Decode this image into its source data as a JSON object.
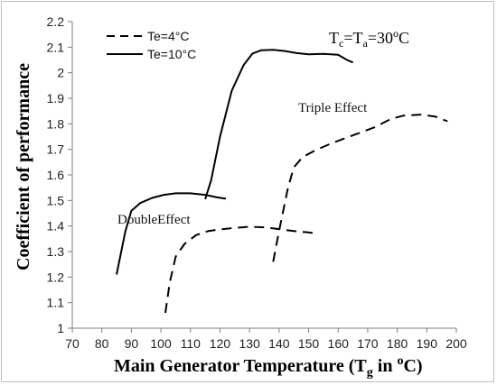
{
  "chart_data": {
    "type": "line",
    "xlabel_main": "Main Generator Temperature (T",
    "xlabel_sub": "g",
    "xlabel_mid": " in ",
    "xlabel_sup": "o",
    "xlabel_end": "C)",
    "ylabel": "Coefficient of performance",
    "xlim": [
      70,
      200
    ],
    "ylim": [
      1,
      2.2
    ],
    "xticks": [
      70,
      80,
      90,
      100,
      110,
      120,
      130,
      140,
      150,
      160,
      170,
      180,
      190,
      200
    ],
    "yticks": [
      "1",
      "1.1",
      "1.2",
      "1.3",
      "1.4",
      "1.5",
      "1.6",
      "1.7",
      "1.8",
      "1.9",
      "2",
      "2.1",
      "2.2"
    ],
    "grid": false,
    "legend_position": "top-left",
    "condition": {
      "t1": "T",
      "s1": "c",
      "eq": "=T",
      "s2": "a",
      "val": "=30",
      "sup": "o",
      "unit": "C"
    },
    "annotations": {
      "double": "DoubleEffect",
      "triple": "Triple Effect"
    },
    "series": [
      {
        "name": "Te=4°C",
        "style": "dashed",
        "color": "#000000",
        "curves": [
          [
            [
              101.5,
              1.06
            ],
            [
              103,
              1.18
            ],
            [
              105,
              1.28
            ],
            [
              108,
              1.33
            ],
            [
              112,
              1.365
            ],
            [
              116,
              1.38
            ],
            [
              120,
              1.387
            ],
            [
              125,
              1.393
            ],
            [
              130,
              1.397
            ],
            [
              135,
              1.395
            ],
            [
              140,
              1.388
            ],
            [
              145,
              1.38
            ],
            [
              150,
              1.375
            ],
            [
              153,
              1.37
            ]
          ],
          [
            [
              138,
              1.26
            ],
            [
              140,
              1.38
            ],
            [
              143,
              1.55
            ],
            [
              145,
              1.63
            ],
            [
              148,
              1.67
            ],
            [
              152,
              1.695
            ],
            [
              158,
              1.725
            ],
            [
              165,
              1.755
            ],
            [
              172,
              1.785
            ],
            [
              178,
              1.82
            ],
            [
              182,
              1.832
            ],
            [
              188,
              1.836
            ],
            [
              193,
              1.828
            ],
            [
              197,
              1.81
            ]
          ]
        ]
      },
      {
        "name": "Te=10°C",
        "style": "solid",
        "color": "#000000",
        "curves": [
          [
            [
              85,
              1.21
            ],
            [
              88,
              1.38
            ],
            [
              90,
              1.46
            ],
            [
              93,
              1.49
            ],
            [
              97,
              1.51
            ],
            [
              101,
              1.522
            ],
            [
              105,
              1.528
            ],
            [
              110,
              1.528
            ],
            [
              115,
              1.522
            ],
            [
              119,
              1.512
            ],
            [
              122,
              1.507
            ]
          ],
          [
            [
              115,
              1.505
            ],
            [
              117,
              1.58
            ],
            [
              120,
              1.75
            ],
            [
              124,
              1.93
            ],
            [
              128,
              2.03
            ],
            [
              131,
              2.075
            ],
            [
              134,
              2.088
            ],
            [
              138,
              2.09
            ],
            [
              142,
              2.085
            ],
            [
              146,
              2.077
            ],
            [
              150,
              2.072
            ],
            [
              155,
              2.074
            ],
            [
              160,
              2.07
            ],
            [
              163,
              2.05
            ],
            [
              165,
              2.04
            ]
          ]
        ]
      }
    ]
  }
}
